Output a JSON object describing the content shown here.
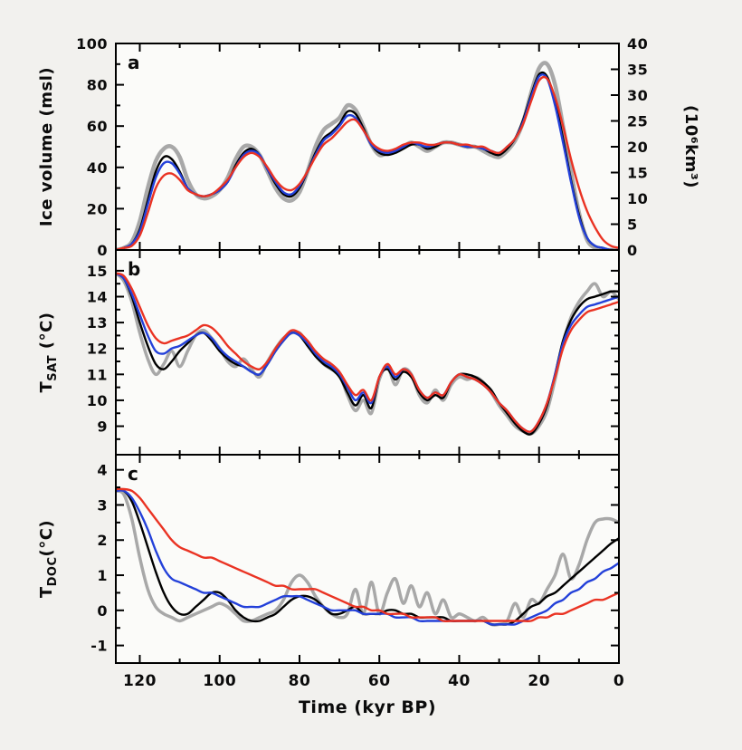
{
  "figure": {
    "background": "#f2f1ee",
    "panel_background": "#fbfbf9",
    "frame_color": "#000000",
    "xlabel": "Time (kyr BP)",
    "x_axis": {
      "left_value": 126,
      "right_value": 0,
      "major_ticks": [
        120,
        100,
        80,
        60,
        40,
        20,
        0
      ],
      "minor_ticks": [
        110,
        90,
        70,
        50,
        30,
        10
      ]
    }
  },
  "shared_x": [
    126,
    124,
    122,
    120,
    118,
    116,
    114,
    112,
    110,
    108,
    106,
    104,
    102,
    100,
    98,
    96,
    94,
    92,
    90,
    88,
    86,
    84,
    82,
    80,
    78,
    76,
    74,
    72,
    70,
    68,
    66,
    64,
    62,
    60,
    58,
    56,
    54,
    52,
    50,
    48,
    46,
    44,
    42,
    40,
    38,
    36,
    34,
    32,
    30,
    28,
    26,
    24,
    22,
    20,
    18,
    16,
    14,
    12,
    10,
    8,
    6,
    4,
    2,
    0
  ],
  "chart_data": [
    {
      "type": "line",
      "panel_letter": "a",
      "ylabel_parts": [
        {
          "t": "Ice volume (msl)"
        }
      ],
      "ylabel_right": "(10⁶km³)",
      "ylim": [
        0,
        100
      ],
      "yticks": [
        0,
        20,
        40,
        60,
        80,
        100
      ],
      "yminor": [
        10,
        30,
        50,
        70,
        90
      ],
      "right_axis": {
        "ylim": [
          0,
          40
        ],
        "yticks": [
          0,
          5,
          10,
          15,
          20,
          25,
          30,
          35,
          40
        ]
      },
      "series": [
        {
          "name": "proxy-gray",
          "color": "#a8a8a8",
          "width": 4.5,
          "values": [
            0,
            1,
            4,
            14,
            30,
            43,
            49,
            50,
            45,
            34,
            27,
            25,
            26,
            29,
            35,
            44,
            50,
            50,
            46,
            38,
            30,
            25,
            24,
            28,
            38,
            50,
            58,
            61,
            64,
            70,
            68,
            60,
            51,
            46,
            47,
            48,
            50,
            52,
            50,
            48,
            50,
            52,
            52,
            51,
            50,
            50,
            48,
            46,
            45,
            48,
            53,
            62,
            76,
            88,
            90,
            80,
            60,
            38,
            18,
            5,
            1,
            0,
            0,
            0
          ]
        },
        {
          "name": "model-black",
          "color": "#000000",
          "width": 2.4,
          "values": [
            0,
            1,
            3,
            10,
            24,
            38,
            45,
            44,
            38,
            30,
            27,
            26,
            27,
            29,
            33,
            41,
            47,
            49,
            46,
            39,
            32,
            27,
            26,
            30,
            38,
            47,
            54,
            57,
            61,
            67,
            66,
            59,
            51,
            47,
            46,
            47,
            49,
            51,
            51,
            49,
            50,
            52,
            52,
            51,
            50,
            50,
            49,
            47,
            46,
            49,
            54,
            63,
            75,
            85,
            84,
            72,
            54,
            34,
            17,
            6,
            2,
            1,
            0,
            0
          ]
        },
        {
          "name": "model-blue",
          "color": "#2340d9",
          "width": 2.4,
          "values": [
            0,
            1,
            3,
            9,
            22,
            35,
            42,
            42,
            37,
            30,
            27,
            26,
            27,
            29,
            33,
            40,
            46,
            48,
            46,
            39,
            33,
            28,
            27,
            31,
            38,
            46,
            53,
            56,
            60,
            65,
            64,
            58,
            51,
            48,
            47,
            48,
            50,
            52,
            51,
            50,
            51,
            52,
            52,
            51,
            50,
            50,
            49,
            48,
            47,
            50,
            54,
            62,
            74,
            84,
            83,
            70,
            52,
            33,
            16,
            6,
            2,
            1,
            0,
            0
          ]
        },
        {
          "name": "model-red",
          "color": "#ea3323",
          "width": 2.4,
          "values": [
            0,
            1,
            2,
            7,
            18,
            30,
            36,
            37,
            34,
            29,
            27,
            26,
            27,
            30,
            34,
            40,
            45,
            47,
            45,
            40,
            34,
            30,
            29,
            32,
            38,
            45,
            51,
            54,
            58,
            62,
            63,
            58,
            52,
            49,
            48,
            49,
            51,
            52,
            52,
            51,
            51,
            52,
            52,
            51,
            51,
            50,
            50,
            48,
            47,
            50,
            54,
            61,
            72,
            82,
            83,
            74,
            60,
            44,
            30,
            19,
            11,
            5,
            2,
            1
          ]
        }
      ]
    },
    {
      "type": "line",
      "panel_letter": "b",
      "ylabel_parts": [
        {
          "t": "T"
        },
        {
          "t": "SAT",
          "sub": true
        },
        {
          "t": " (°C)"
        }
      ],
      "ylim": [
        7.9,
        15.8
      ],
      "yticks": [
        9,
        10,
        11,
        12,
        13,
        14,
        15
      ],
      "yminor": [
        8.5,
        9.5,
        10.5,
        11.5,
        12.5,
        13.5,
        14.5
      ],
      "series": [
        {
          "name": "proxy-gray",
          "color": "#a8a8a8",
          "width": 3.5,
          "values": [
            14.9,
            14.6,
            13.8,
            12.6,
            11.6,
            11.0,
            11.4,
            11.9,
            11.3,
            11.9,
            12.5,
            12.7,
            12.4,
            12.0,
            11.5,
            11.3,
            11.6,
            11.2,
            10.9,
            11.5,
            12.0,
            12.4,
            12.6,
            12.6,
            12.2,
            11.8,
            11.4,
            11.2,
            11.0,
            10.2,
            9.6,
            10.0,
            9.5,
            10.8,
            11.3,
            10.6,
            11.2,
            11.0,
            10.2,
            9.9,
            10.4,
            10.0,
            10.6,
            10.9,
            10.8,
            10.9,
            10.7,
            10.3,
            9.8,
            9.4,
            9.0,
            8.8,
            8.7,
            9.0,
            9.6,
            10.8,
            12.2,
            13.2,
            13.8,
            14.2,
            14.5,
            14.0,
            14.2,
            13.9
          ]
        },
        {
          "name": "model-black",
          "color": "#000000",
          "width": 2.4,
          "values": [
            14.9,
            14.7,
            14.0,
            13.0,
            12.1,
            11.4,
            11.2,
            11.5,
            11.9,
            12.2,
            12.5,
            12.6,
            12.3,
            11.9,
            11.6,
            11.4,
            11.3,
            11.1,
            11.0,
            11.4,
            11.9,
            12.3,
            12.6,
            12.5,
            12.1,
            11.7,
            11.4,
            11.2,
            10.9,
            10.3,
            9.8,
            10.2,
            9.7,
            10.9,
            11.2,
            10.8,
            11.1,
            10.9,
            10.3,
            10.0,
            10.2,
            10.1,
            10.7,
            11.0,
            11.0,
            10.9,
            10.7,
            10.4,
            9.9,
            9.5,
            9.1,
            8.8,
            8.7,
            9.1,
            9.8,
            11.0,
            12.3,
            13.1,
            13.6,
            13.9,
            14.0,
            14.1,
            14.2,
            14.2
          ]
        },
        {
          "name": "model-blue",
          "color": "#2340d9",
          "width": 2.4,
          "values": [
            14.9,
            14.7,
            14.1,
            13.3,
            12.5,
            11.9,
            11.8,
            12.0,
            12.1,
            12.3,
            12.5,
            12.6,
            12.4,
            12.0,
            11.7,
            11.5,
            11.3,
            11.1,
            11.0,
            11.4,
            11.9,
            12.3,
            12.6,
            12.5,
            12.2,
            11.8,
            11.5,
            11.3,
            11.0,
            10.5,
            10.0,
            10.3,
            9.9,
            10.9,
            11.3,
            10.9,
            11.2,
            11.0,
            10.4,
            10.1,
            10.3,
            10.2,
            10.7,
            11.0,
            10.9,
            10.8,
            10.6,
            10.3,
            9.9,
            9.6,
            9.2,
            8.9,
            8.8,
            9.2,
            9.9,
            11.0,
            12.2,
            12.9,
            13.3,
            13.6,
            13.7,
            13.8,
            13.9,
            14.0
          ]
        },
        {
          "name": "model-red",
          "color": "#ea3323",
          "width": 2.4,
          "values": [
            14.9,
            14.8,
            14.3,
            13.6,
            12.9,
            12.4,
            12.2,
            12.3,
            12.4,
            12.5,
            12.7,
            12.9,
            12.8,
            12.5,
            12.1,
            11.8,
            11.5,
            11.3,
            11.2,
            11.5,
            12.0,
            12.4,
            12.7,
            12.6,
            12.3,
            11.9,
            11.6,
            11.4,
            11.1,
            10.6,
            10.2,
            10.4,
            10.0,
            10.9,
            11.4,
            11.0,
            11.2,
            11.0,
            10.4,
            10.1,
            10.3,
            10.2,
            10.7,
            11.0,
            10.9,
            10.8,
            10.6,
            10.3,
            9.9,
            9.6,
            9.2,
            8.9,
            8.8,
            9.2,
            9.9,
            10.9,
            12.0,
            12.7,
            13.1,
            13.4,
            13.5,
            13.6,
            13.7,
            13.8
          ]
        }
      ]
    },
    {
      "type": "line",
      "panel_letter": "c",
      "ylabel_parts": [
        {
          "t": "T"
        },
        {
          "t": "DOC",
          "sub": true
        },
        {
          "t": "(°C)"
        }
      ],
      "ylim": [
        -1.5,
        4.43
      ],
      "yticks": [
        -1,
        0,
        1,
        2,
        3,
        4
      ],
      "yminor": [
        -0.5,
        0.5,
        1.5,
        2.5,
        3.5
      ],
      "series": [
        {
          "name": "proxy-gray",
          "color": "#a8a8a8",
          "width": 3.5,
          "values": [
            3.4,
            3.3,
            2.6,
            1.5,
            0.6,
            0.1,
            -0.1,
            -0.2,
            -0.3,
            -0.2,
            -0.1,
            0.0,
            0.1,
            0.2,
            0.1,
            -0.1,
            -0.3,
            -0.3,
            -0.2,
            -0.1,
            0.0,
            0.3,
            0.8,
            1.0,
            0.8,
            0.4,
            0.1,
            -0.1,
            -0.2,
            -0.1,
            0.6,
            -0.1,
            0.8,
            -0.1,
            0.5,
            0.9,
            0.2,
            0.7,
            0.1,
            0.5,
            -0.1,
            0.3,
            -0.2,
            -0.1,
            -0.2,
            -0.3,
            -0.2,
            -0.4,
            -0.4,
            -0.3,
            0.2,
            -0.2,
            0.3,
            0.2,
            0.6,
            1.0,
            1.6,
            0.9,
            1.3,
            2.0,
            2.5,
            2.6,
            2.6,
            2.5
          ]
        },
        {
          "name": "model-black",
          "color": "#000000",
          "width": 2.4,
          "values": [
            3.4,
            3.4,
            3.1,
            2.5,
            1.8,
            1.1,
            0.5,
            0.1,
            -0.1,
            -0.1,
            0.1,
            0.3,
            0.5,
            0.5,
            0.3,
            0.0,
            -0.2,
            -0.3,
            -0.3,
            -0.2,
            -0.1,
            0.1,
            0.3,
            0.4,
            0.4,
            0.3,
            0.1,
            -0.1,
            -0.1,
            0.0,
            0.1,
            -0.1,
            -0.1,
            -0.1,
            0.0,
            0.0,
            -0.1,
            -0.1,
            -0.2,
            -0.2,
            -0.2,
            -0.2,
            -0.3,
            -0.3,
            -0.3,
            -0.3,
            -0.3,
            -0.4,
            -0.4,
            -0.4,
            -0.3,
            -0.1,
            0.1,
            0.2,
            0.4,
            0.5,
            0.7,
            0.9,
            1.1,
            1.3,
            1.5,
            1.7,
            1.9,
            2.05
          ]
        },
        {
          "name": "model-blue",
          "color": "#2340d9",
          "width": 2.4,
          "values": [
            3.4,
            3.4,
            3.2,
            2.8,
            2.3,
            1.7,
            1.2,
            0.9,
            0.8,
            0.7,
            0.6,
            0.5,
            0.5,
            0.4,
            0.3,
            0.2,
            0.1,
            0.1,
            0.1,
            0.2,
            0.3,
            0.4,
            0.4,
            0.4,
            0.3,
            0.2,
            0.1,
            0.0,
            0.0,
            0.0,
            0.0,
            -0.1,
            -0.1,
            -0.1,
            -0.1,
            -0.2,
            -0.2,
            -0.2,
            -0.3,
            -0.3,
            -0.3,
            -0.3,
            -0.3,
            -0.3,
            -0.3,
            -0.3,
            -0.3,
            -0.4,
            -0.4,
            -0.4,
            -0.4,
            -0.3,
            -0.2,
            -0.1,
            0.0,
            0.2,
            0.3,
            0.5,
            0.6,
            0.8,
            0.9,
            1.1,
            1.2,
            1.35
          ]
        },
        {
          "name": "model-red",
          "color": "#ea3323",
          "width": 2.4,
          "values": [
            3.45,
            3.45,
            3.4,
            3.2,
            2.9,
            2.6,
            2.3,
            2.0,
            1.8,
            1.7,
            1.6,
            1.5,
            1.5,
            1.4,
            1.3,
            1.2,
            1.1,
            1.0,
            0.9,
            0.8,
            0.7,
            0.7,
            0.6,
            0.6,
            0.6,
            0.6,
            0.5,
            0.4,
            0.3,
            0.2,
            0.1,
            0.1,
            0.0,
            0.0,
            -0.1,
            -0.1,
            -0.1,
            -0.2,
            -0.2,
            -0.2,
            -0.2,
            -0.3,
            -0.3,
            -0.3,
            -0.3,
            -0.3,
            -0.3,
            -0.3,
            -0.3,
            -0.3,
            -0.3,
            -0.3,
            -0.3,
            -0.2,
            -0.2,
            -0.1,
            -0.1,
            0.0,
            0.1,
            0.2,
            0.3,
            0.3,
            0.4,
            0.5
          ]
        }
      ]
    }
  ]
}
